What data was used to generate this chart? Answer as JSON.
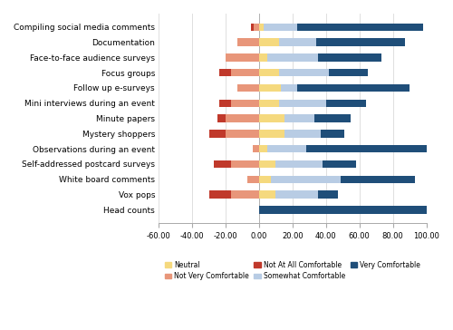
{
  "categories": [
    "Head counts",
    "Vox pops",
    "White board comments",
    "Self-addressed postcard surveys",
    "Observations during an event",
    "Mystery shoppers",
    "Minute papers",
    "Mini interviews during an event",
    "Follow up e-surveys",
    "Focus groups",
    "Face-to-face audience surveys",
    "Documentation",
    "Compiling social media comments"
  ],
  "not_at_all": [
    0,
    -13,
    0,
    -10,
    0,
    -10,
    -5,
    -7,
    0,
    -7,
    0,
    0,
    -2
  ],
  "not_very": [
    0,
    -17,
    -7,
    -17,
    -4,
    -20,
    -20,
    -17,
    -13,
    -17,
    -20,
    -13,
    -3
  ],
  "neutral": [
    0,
    10,
    7,
    10,
    5,
    15,
    15,
    12,
    13,
    12,
    5,
    12,
    3
  ],
  "somewhat": [
    0,
    25,
    42,
    28,
    23,
    22,
    18,
    28,
    10,
    30,
    30,
    22,
    20
  ],
  "very": [
    100,
    12,
    44,
    20,
    77,
    14,
    22,
    24,
    67,
    23,
    38,
    53,
    75
  ],
  "colors": {
    "not_at_all": "#c0392b",
    "not_very": "#e8967a",
    "neutral": "#f5d97e",
    "somewhat": "#b8cce4",
    "very": "#1f4e79"
  },
  "xlim": [
    -60,
    100
  ],
  "xticks": [
    -60,
    -40,
    -20,
    0,
    20,
    40,
    60,
    80,
    100
  ],
  "xtick_labels": [
    "-60.00",
    "-40.00",
    "-20.00",
    "0.00",
    "20.00",
    "40.00",
    "60.00",
    "80.00",
    "100.00"
  ],
  "background_color": "#ffffff",
  "grid_color": "#d9d9d9",
  "bar_height": 0.5,
  "label_fontsize": 6.5,
  "tick_fontsize": 6.0
}
